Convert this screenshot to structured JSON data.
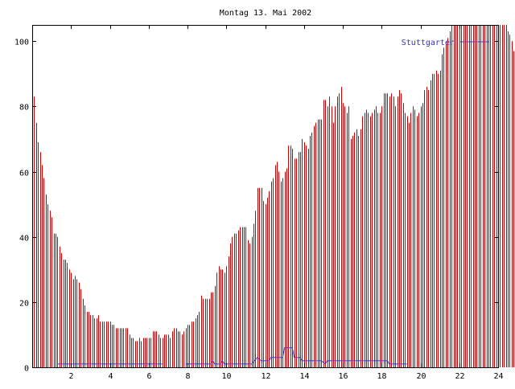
{
  "chart_data": {
    "type": "bar",
    "title": "Montag 13. Mai 2002",
    "xlabel": "",
    "ylabel": "",
    "xlim": [
      0,
      24
    ],
    "ylim": [
      0,
      105
    ],
    "x_ticks": [
      2,
      4,
      6,
      8,
      10,
      12,
      14,
      16,
      18,
      20,
      22,
      24
    ],
    "y_ticks": [
      0,
      20,
      40,
      60,
      80,
      100
    ],
    "grid": false,
    "legend_position": "top-right",
    "bar_series": {
      "color": "#cc0000",
      "x_start": 0.1,
      "x_step": 0.1,
      "values": [
        83,
        75,
        69,
        66,
        62,
        58,
        53,
        50,
        48,
        46,
        41,
        41,
        40,
        37,
        35,
        33,
        33,
        32,
        30,
        29,
        27,
        28,
        27,
        26,
        24,
        21,
        19,
        17,
        17,
        16,
        16,
        15,
        15,
        16,
        14,
        14,
        14,
        14,
        14,
        14,
        13,
        13,
        12,
        12,
        12,
        12,
        12,
        12,
        12,
        10,
        9,
        9,
        8,
        8,
        9,
        8,
        9,
        9,
        9,
        9,
        9,
        11,
        11,
        11,
        10,
        9,
        9,
        10,
        10,
        10,
        9,
        11,
        12,
        12,
        11,
        11,
        10,
        11,
        12,
        13,
        13,
        14,
        14,
        15,
        16,
        17,
        22,
        21,
        21,
        21,
        21,
        23,
        23,
        25,
        29,
        31,
        30,
        30,
        29,
        31,
        34,
        38,
        40,
        41,
        41,
        42,
        43,
        43,
        43,
        43,
        39,
        38,
        40,
        44,
        48,
        55,
        55,
        55,
        51,
        50,
        52,
        54,
        57,
        58,
        62,
        63,
        60,
        57,
        58,
        60,
        61,
        68,
        68,
        67,
        64,
        64,
        66,
        66,
        70,
        69,
        68,
        67,
        71,
        72,
        74,
        75,
        76,
        76,
        76,
        82,
        82,
        80,
        83,
        80,
        75,
        80,
        83,
        84,
        86,
        81,
        80,
        78,
        80,
        70,
        71,
        72,
        73,
        71,
        73,
        77,
        78,
        79,
        78,
        77,
        78,
        79,
        80,
        78,
        78,
        80,
        84,
        84,
        84,
        83,
        84,
        83,
        80,
        83,
        85,
        84,
        81,
        78,
        77,
        75,
        78,
        80,
        79,
        77,
        78,
        80,
        81,
        85,
        86,
        85,
        88,
        90,
        90,
        91,
        90,
        91,
        96,
        98,
        100,
        101,
        103,
        105,
        105,
        105,
        105,
        105,
        105,
        105,
        105,
        105,
        105,
        105,
        105,
        105,
        105,
        105,
        105,
        105,
        105,
        105,
        105,
        105,
        105,
        105,
        105,
        105,
        105,
        105,
        105,
        105,
        103,
        102,
        100,
        97,
        97
      ]
    },
    "series": [
      {
        "name": "Stuttgarter",
        "color": "#3333cc",
        "segments": [
          [
            [
              1.3,
              1
            ],
            [
              6.7,
              1
            ]
          ],
          [
            [
              7.9,
              1
            ],
            [
              9.2,
              1
            ],
            [
              9.3,
              2
            ],
            [
              9.4,
              1
            ],
            [
              9.7,
              1
            ],
            [
              9.8,
              2
            ],
            [
              9.9,
              1
            ],
            [
              11.3,
              1
            ],
            [
              11.6,
              3
            ],
            [
              11.8,
              2
            ],
            [
              12.2,
              2
            ],
            [
              12.3,
              3
            ],
            [
              12.9,
              3
            ],
            [
              13.0,
              6
            ],
            [
              13.4,
              6
            ],
            [
              13.5,
              3
            ],
            [
              13.8,
              3
            ],
            [
              13.9,
              2
            ],
            [
              14.9,
              2
            ],
            [
              15.1,
              1
            ],
            [
              15.2,
              2
            ],
            [
              18.3,
              2
            ],
            [
              18.4,
              1
            ],
            [
              19.3,
              1
            ]
          ]
        ]
      }
    ]
  }
}
